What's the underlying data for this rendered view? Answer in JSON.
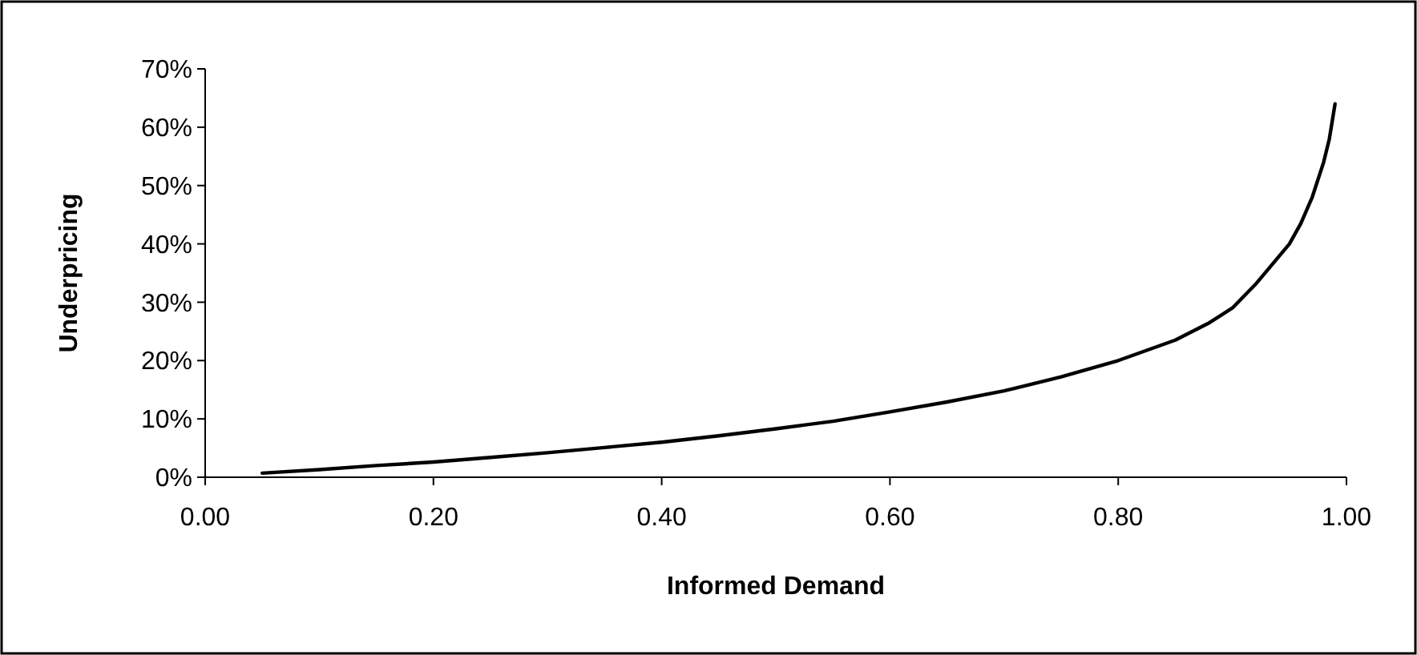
{
  "chart_data": {
    "type": "line",
    "xlabel": "Informed Demand",
    "ylabel": "Underpricing",
    "x": [
      0.05,
      0.1,
      0.15,
      0.2,
      0.25,
      0.3,
      0.35,
      0.4,
      0.45,
      0.5,
      0.55,
      0.6,
      0.65,
      0.7,
      0.75,
      0.8,
      0.85,
      0.88,
      0.9,
      0.92,
      0.95,
      0.96,
      0.97,
      0.98,
      0.985,
      0.99
    ],
    "series": [
      {
        "color": "#000000",
        "values": [
          0.7,
          1.3,
          2,
          2.6,
          3.4,
          4.2,
          5.1,
          6,
          7.1,
          8.3,
          9.6,
          11.2,
          12.9,
          14.8,
          17.2,
          20,
          23.5,
          26.5,
          29,
          33,
          40,
          43.5,
          48,
          54,
          58,
          64
        ]
      }
    ],
    "xlim": [
      0,
      1
    ],
    "xticks": [
      {
        "value": 0,
        "label": "0.00"
      },
      {
        "value": 0.2,
        "label": "0.20"
      },
      {
        "value": 0.4,
        "label": "0.40"
      },
      {
        "value": 0.6,
        "label": "0.60"
      },
      {
        "value": 0.8,
        "label": "0.80"
      },
      {
        "value": 1,
        "label": "1.00"
      }
    ],
    "ylim": [
      0,
      70
    ],
    "yticks": [
      {
        "value": 0,
        "label": "0%"
      },
      {
        "value": 10,
        "label": "10%"
      },
      {
        "value": 20,
        "label": "20%"
      },
      {
        "value": 30,
        "label": "30%"
      },
      {
        "value": 40,
        "label": "40%"
      },
      {
        "value": 50,
        "label": "50%"
      },
      {
        "value": 60,
        "label": "60%"
      },
      {
        "value": 70,
        "label": "70%"
      }
    ],
    "grid": false,
    "line_style": "solid"
  }
}
